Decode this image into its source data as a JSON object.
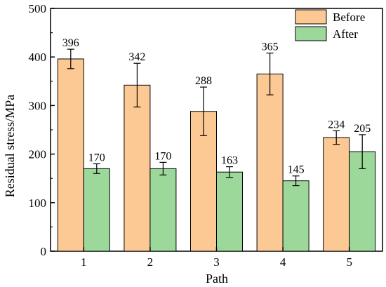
{
  "chart_data": {
    "type": "bar",
    "xlabel": "Path",
    "ylabel": "Residual stress/MPa",
    "ylim": [
      0,
      500
    ],
    "yticks": [
      0,
      100,
      200,
      300,
      400,
      500
    ],
    "categories": [
      "1",
      "2",
      "3",
      "4",
      "5"
    ],
    "legend_position": "top-right",
    "grid": false,
    "series": [
      {
        "name": "Before",
        "color": "#FCC994",
        "values": [
          396,
          342,
          288,
          365,
          234
        ],
        "errors": [
          20,
          45,
          50,
          43,
          14
        ],
        "labels": [
          "396",
          "342",
          "288",
          "365",
          "234"
        ]
      },
      {
        "name": "After",
        "color": "#9DD89B",
        "values": [
          170,
          170,
          163,
          145,
          205
        ],
        "errors": [
          10,
          13,
          11,
          10,
          35
        ],
        "labels": [
          "170",
          "170",
          "163",
          "145",
          "205"
        ]
      }
    ]
  }
}
